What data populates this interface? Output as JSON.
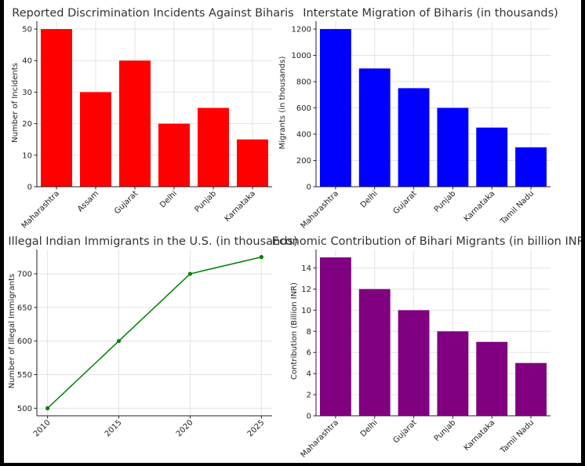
{
  "chart_data": [
    {
      "type": "bar",
      "title": "Reported Discrimination Incidents Against Biharis",
      "xlabel": "",
      "ylabel": "Number of Incidents",
      "categories": [
        "Maharashtra",
        "Assam",
        "Gujarat",
        "Delhi",
        "Punjab",
        "Karnataka"
      ],
      "values": [
        50,
        30,
        40,
        20,
        25,
        15
      ],
      "ylim": [
        0,
        52.5
      ],
      "yticks": [
        0,
        10,
        20,
        30,
        40,
        50
      ],
      "color": "#ff0000",
      "grid": true
    },
    {
      "type": "bar",
      "title": "Interstate Migration of Biharis (in thousands)",
      "xlabel": "",
      "ylabel": "Migrants (in thousands)",
      "categories": [
        "Maharashtra",
        "Delhi",
        "Gujarat",
        "Punjab",
        "Karnataka",
        "Tamil Nadu"
      ],
      "values": [
        1200,
        900,
        750,
        600,
        450,
        300
      ],
      "ylim": [
        0,
        1260
      ],
      "yticks": [
        0,
        200,
        400,
        600,
        800,
        1000,
        1200
      ],
      "color": "#0000ff",
      "grid": true
    },
    {
      "type": "line",
      "title": "Illegal Indian Immigrants in the U.S. (in thousands)",
      "xlabel": "",
      "ylabel": "Number of Illegal Immigrants",
      "x": [
        2010,
        2015,
        2020,
        2025
      ],
      "values": [
        500,
        600,
        700,
        725
      ],
      "xlim": [
        2009.25,
        2025.75
      ],
      "ylim": [
        488.75,
        736.25
      ],
      "yticks": [
        500,
        550,
        600,
        650,
        700
      ],
      "color": "#008000",
      "grid": true
    },
    {
      "type": "bar",
      "title": "Economic Contribution of Bihari Migrants (in billion INR)",
      "xlabel": "",
      "ylabel": "Contribution (Billion INR)",
      "categories": [
        "Maharashtra",
        "Delhi",
        "Gujarat",
        "Punjab",
        "Karnataka",
        "Tamil Nadu"
      ],
      "values": [
        15,
        12,
        10,
        8,
        7,
        5
      ],
      "ylim": [
        0,
        15.75
      ],
      "yticks": [
        0,
        2,
        4,
        6,
        8,
        10,
        12,
        14
      ],
      "color": "#800080",
      "grid": true
    }
  ]
}
